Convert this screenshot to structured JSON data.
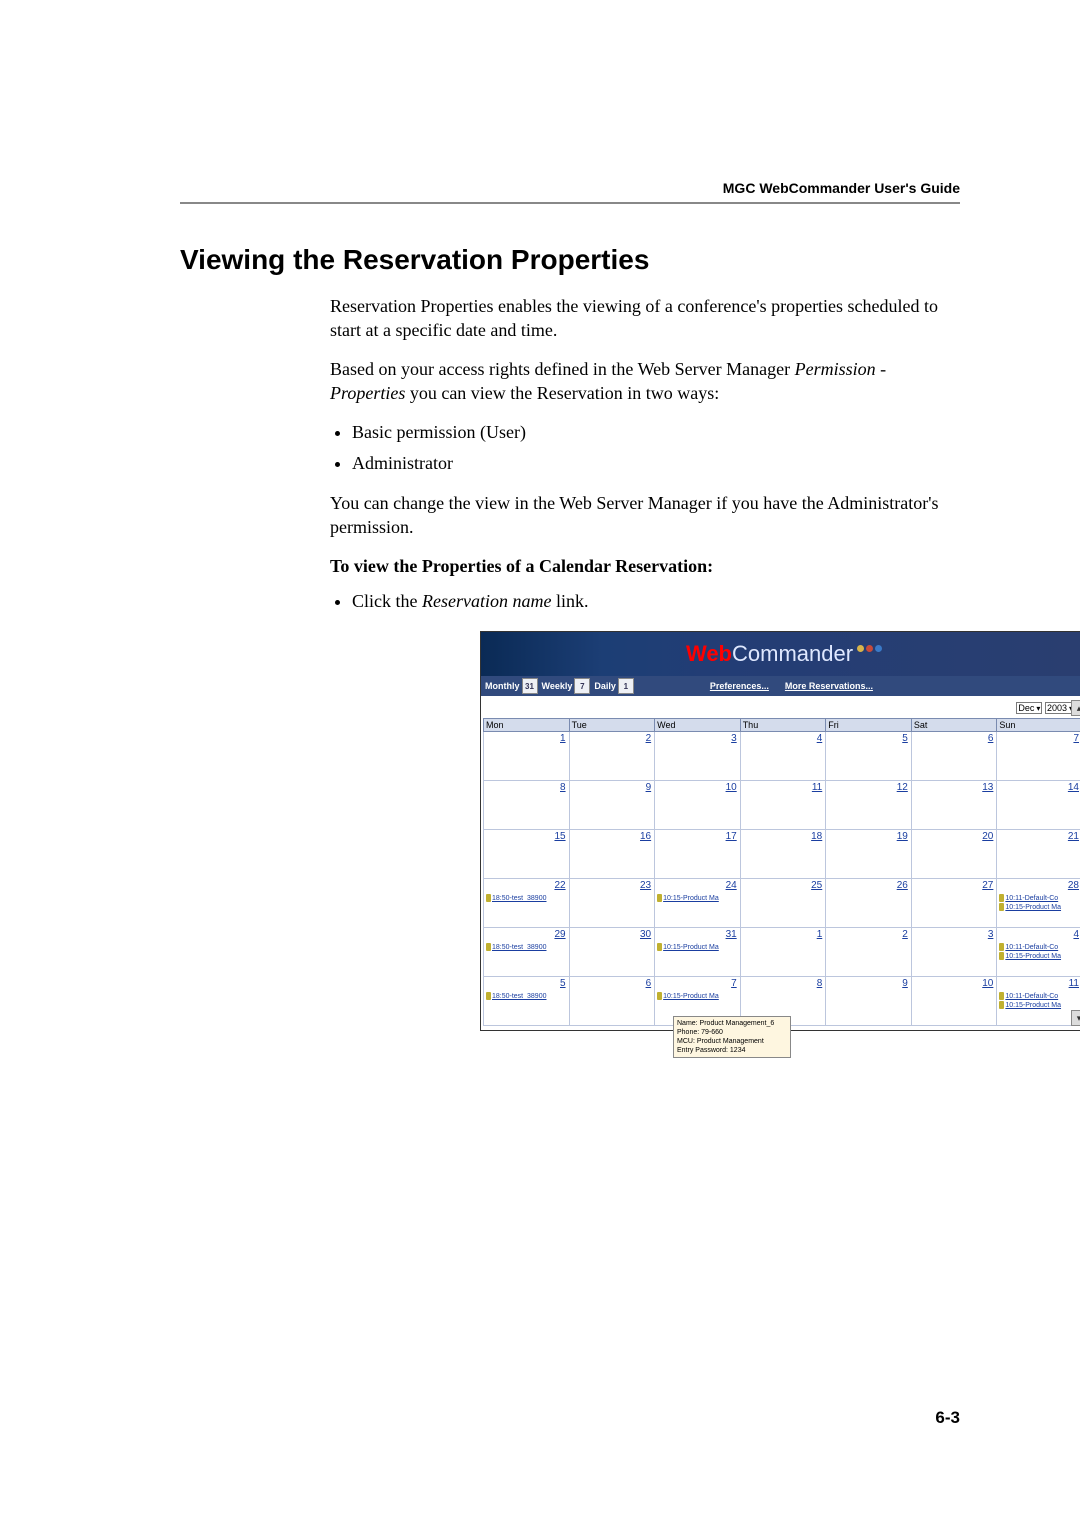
{
  "header": {
    "guide": "MGC WebCommander User's Guide"
  },
  "section": {
    "title": "Viewing the Reservation Properties",
    "para1": "Reservation Properties enables the viewing of a conference's properties scheduled to start at a specific date and time.",
    "para2a": "Based on your access rights defined in the Web Server Manager ",
    "para2_em": "Permission - Properties",
    "para2b": " you can view the Reservation in two ways:",
    "bullet1": "Basic permission (User)",
    "bullet2": "Administrator",
    "para3": "You can change the view in the Web Server Manager if you have the Administrator's permission.",
    "subhead": "To view the Properties of a Calendar Reservation:",
    "step_a": "Click the ",
    "step_em": "Reservation name",
    "step_b": " link."
  },
  "page_number": "6-3",
  "app": {
    "logo_web": "Web",
    "logo_commander": "Commander",
    "toolbar": {
      "monthly": "Monthly",
      "weekly": "Weekly",
      "daily": "Daily",
      "monthly_n": "31",
      "weekly_n": "7",
      "daily_n": "1",
      "prefs": "Preferences...",
      "more": "More Reservations..."
    },
    "month_sel": "Dec",
    "year_sel": "2003",
    "days": [
      "Mon",
      "Tue",
      "Wed",
      "Thu",
      "Fri",
      "Sat",
      "Sun"
    ],
    "grid": [
      [
        {
          "n": "1"
        },
        {
          "n": "2"
        },
        {
          "n": "3"
        },
        {
          "n": "4"
        },
        {
          "n": "5"
        },
        {
          "n": "6"
        },
        {
          "n": "7"
        }
      ],
      [
        {
          "n": "8"
        },
        {
          "n": "9"
        },
        {
          "n": "10"
        },
        {
          "n": "11"
        },
        {
          "n": "12"
        },
        {
          "n": "13"
        },
        {
          "n": "14"
        }
      ],
      [
        {
          "n": "15"
        },
        {
          "n": "16"
        },
        {
          "n": "17"
        },
        {
          "n": "18"
        },
        {
          "n": "19"
        },
        {
          "n": "20"
        },
        {
          "n": "21"
        }
      ],
      [
        {
          "n": "22",
          "ev": [
            "18:50-test_38900"
          ]
        },
        {
          "n": "23"
        },
        {
          "n": "24",
          "ev": [
            "10:15-Product Ma"
          ]
        },
        {
          "n": "25"
        },
        {
          "n": "26"
        },
        {
          "n": "27"
        },
        {
          "n": "28",
          "ev": [
            "10:11-Default-Co",
            "10:15-Product Ma"
          ]
        }
      ],
      [
        {
          "n": "29",
          "ev": [
            "18:50-test_38900"
          ]
        },
        {
          "n": "30"
        },
        {
          "n": "31",
          "ev": [
            "10:15-Product Ma"
          ]
        },
        {
          "n": "1"
        },
        {
          "n": "2"
        },
        {
          "n": "3"
        },
        {
          "n": "4",
          "ev": [
            "10:11-Default-Co",
            "10:15-Product Ma"
          ]
        }
      ],
      [
        {
          "n": "5",
          "ev": [
            "18:50-test_38900"
          ]
        },
        {
          "n": "6"
        },
        {
          "n": "7",
          "ev": [
            "10:15-Product Ma"
          ]
        },
        {
          "n": "8"
        },
        {
          "n": "9"
        },
        {
          "n": "10"
        },
        {
          "n": "11",
          "ev": [
            "10:11-Default-Co",
            "10:15-Product Ma"
          ]
        }
      ]
    ],
    "tooltip": {
      "l1": "Name: Product Management_6",
      "l2": "Phone: 79-660",
      "l3": "MCU: Product Management",
      "l4": "Entry Password: 1234"
    }
  }
}
